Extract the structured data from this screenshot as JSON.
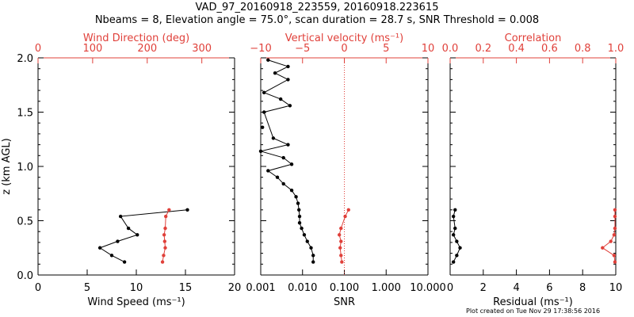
{
  "title_line1": "VAD_97_20160918_223559, 20160918.223615",
  "title_line2": "Nbeams = 8, Elevation angle = 75.0°, scan duration = 28.7 s, SNR Threshold = 0.008",
  "footer": "Plot created on Tue Nov 29 17:38:56 2016",
  "colors": {
    "axes": "#000000",
    "secondary": "#e0403a"
  },
  "chart_data": [
    {
      "type": "line",
      "panel": "wind",
      "ylabel": "z (km AGL)",
      "ylim": [
        0,
        2.0
      ],
      "yticks": [
        "0.0",
        "0.5",
        "1.0",
        "1.5",
        "2.0"
      ],
      "xlabel": "Wind Speed (ms⁻¹)",
      "xlim": [
        0,
        20
      ],
      "xticks": [
        "0",
        "5",
        "10",
        "15",
        "20"
      ],
      "top_xlabel": "Wind Direction (deg)",
      "top_xlim": [
        0,
        360
      ],
      "top_xticks": [
        "0",
        "100",
        "200",
        "300"
      ],
      "series": [
        {
          "role": "wind_speed",
          "axis": "bottom",
          "color": "#000000",
          "x": [
            8.8,
            7.5,
            6.3,
            8.1,
            10.1,
            9.2,
            8.4,
            15.2
          ],
          "z": [
            0.12,
            0.18,
            0.25,
            0.31,
            0.37,
            0.43,
            0.54,
            0.6
          ]
        },
        {
          "role": "wind_direction",
          "axis": "top",
          "color": "#e0403a",
          "x": [
            228,
            230,
            233,
            232,
            231,
            233,
            234,
            240
          ],
          "z": [
            0.12,
            0.18,
            0.25,
            0.31,
            0.37,
            0.43,
            0.54,
            0.6
          ]
        }
      ]
    },
    {
      "type": "line",
      "panel": "snr",
      "ylim": [
        0,
        2.0
      ],
      "xlabel": "SNR",
      "xscale": "log",
      "xlim": [
        0.001,
        10
      ],
      "xticks": [
        "0.001",
        "0.010",
        "0.100",
        "1.000",
        "10.000"
      ],
      "top_xlabel": "Vertical velocity (ms⁻¹)",
      "top_xlim": [
        -10,
        10
      ],
      "top_xticks": [
        "−10",
        "−5",
        "0",
        "5",
        "10"
      ],
      "reference_line": {
        "axis": "top",
        "value": 0,
        "style": "dotted"
      },
      "series": [
        {
          "role": "snr",
          "axis": "bottom",
          "color": "#000000",
          "x": [
            0.018,
            0.018,
            0.016,
            0.013,
            0.011,
            0.0095,
            0.0085,
            0.0085,
            0.0082,
            0.0078,
            0.007,
            0.0055,
            0.0035,
            0.0025,
            0.0015,
            0.0055,
            0.0035,
            0.001,
            0.0045,
            0.002,
            0.0012,
            0.005,
            0.003,
            0.0012,
            0.0045,
            0.0022,
            0.0045,
            0.0015
          ],
          "z": [
            0.12,
            0.18,
            0.25,
            0.31,
            0.37,
            0.43,
            0.48,
            0.54,
            0.6,
            0.66,
            0.72,
            0.78,
            0.84,
            0.9,
            0.96,
            1.02,
            1.08,
            1.14,
            1.2,
            1.26,
            1.5,
            1.56,
            1.62,
            1.68,
            1.8,
            1.86,
            1.92,
            1.98
          ]
        },
        {
          "role": "vertical_velocity",
          "axis": "top",
          "color": "#e0403a",
          "x": [
            -0.3,
            -0.4,
            -0.5,
            -0.4,
            -0.6,
            -0.4,
            0.1,
            0.5
          ],
          "z": [
            0.12,
            0.18,
            0.25,
            0.31,
            0.37,
            0.43,
            0.54,
            0.6
          ]
        }
      ],
      "isolated_points": [
        {
          "x": 0.0011,
          "z": 1.36
        }
      ]
    },
    {
      "type": "line",
      "panel": "residual",
      "ylim": [
        0,
        2.0
      ],
      "xlabel": "Residual (ms⁻¹)",
      "xlim": [
        0,
        10
      ],
      "xticks": [
        "0",
        "2",
        "4",
        "6",
        "8",
        "10"
      ],
      "top_xlabel": "Correlation",
      "top_xlim": [
        0,
        1.0
      ],
      "top_xticks": [
        "0.0",
        "0.2",
        "0.4",
        "0.6",
        "0.8",
        "1.0"
      ],
      "series": [
        {
          "role": "residual",
          "axis": "bottom",
          "color": "#000000",
          "x": [
            0.2,
            0.4,
            0.6,
            0.4,
            0.2,
            0.3,
            0.2,
            0.3
          ],
          "z": [
            0.12,
            0.18,
            0.25,
            0.31,
            0.37,
            0.43,
            0.54,
            0.6
          ]
        },
        {
          "role": "correlation",
          "axis": "top",
          "color": "#e0403a",
          "x": [
            0.995,
            0.99,
            0.92,
            0.97,
            0.99,
            0.995,
            0.995,
            0.995
          ],
          "z": [
            0.12,
            0.18,
            0.25,
            0.31,
            0.37,
            0.43,
            0.54,
            0.6
          ]
        }
      ]
    }
  ]
}
